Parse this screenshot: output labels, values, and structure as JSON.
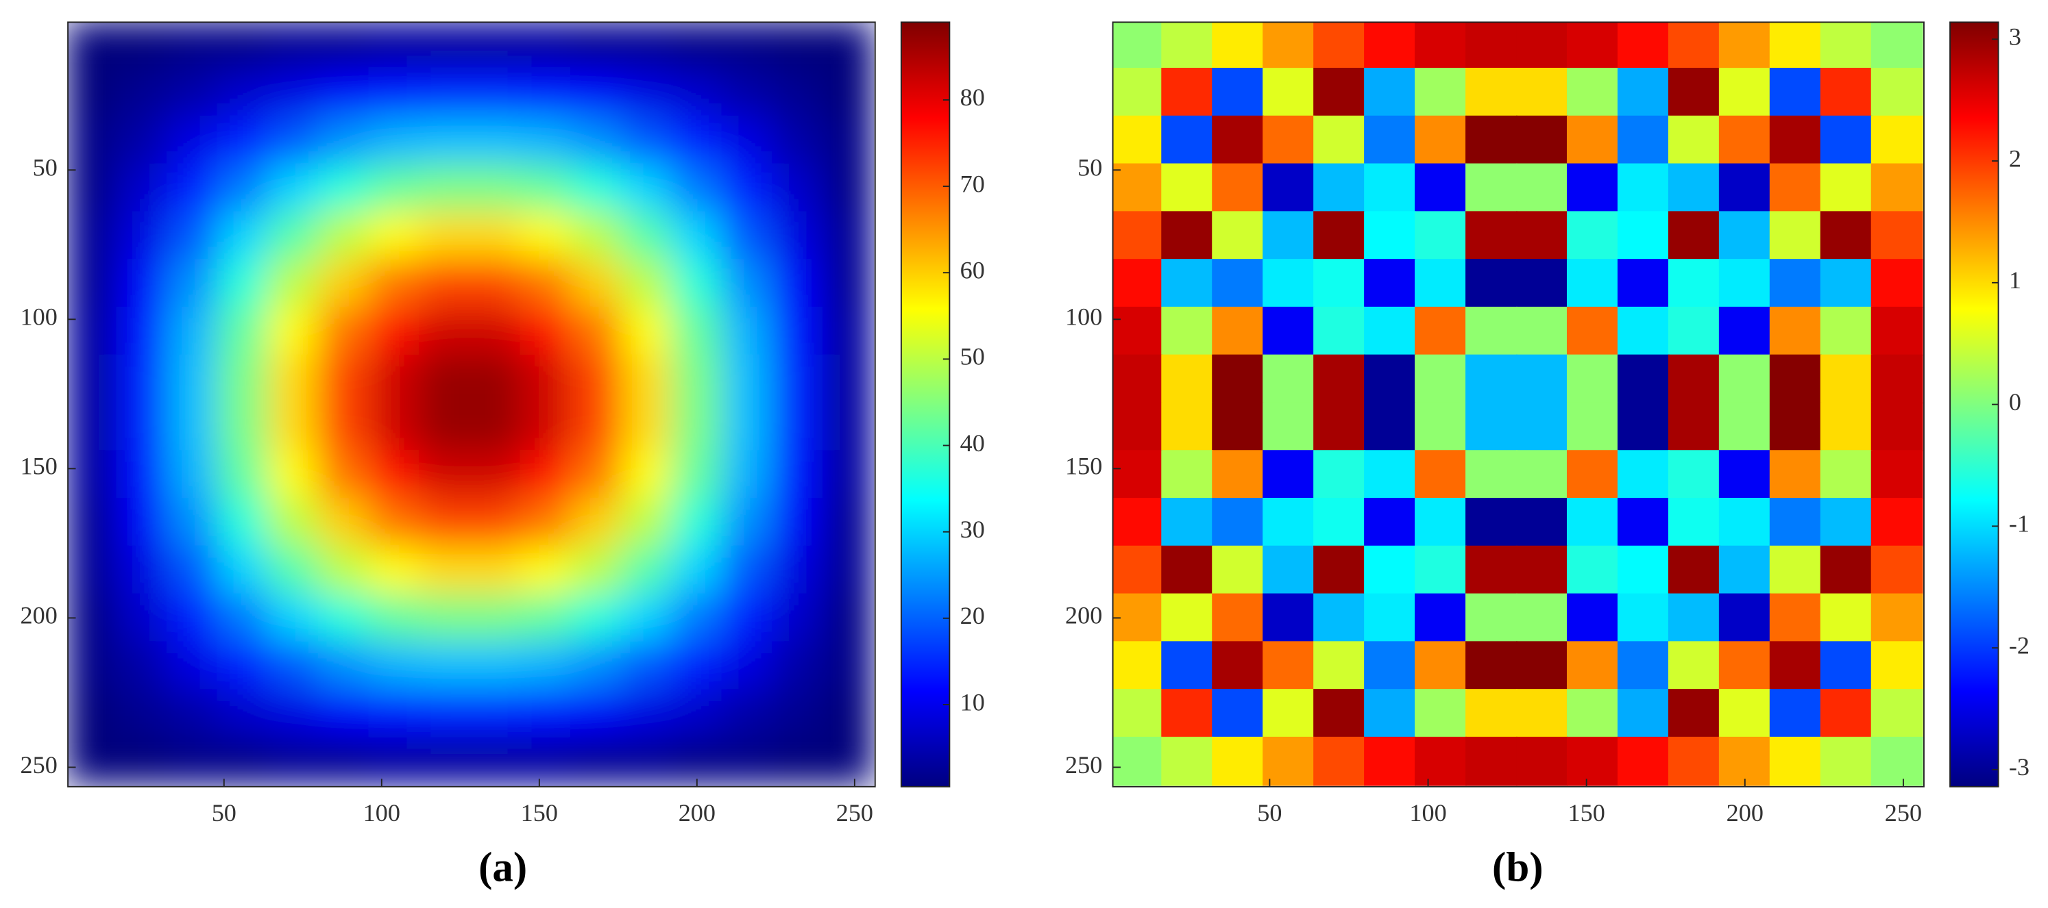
{
  "chart_data": [
    {
      "type": "heatmap",
      "label": "(a)",
      "colormap": "jet",
      "x": [
        8,
        24,
        40,
        56,
        72,
        88,
        104,
        120,
        136,
        152,
        168,
        184,
        200,
        216,
        232,
        248
      ],
      "y": [
        8,
        24,
        40,
        56,
        72,
        88,
        104,
        120,
        136,
        152,
        168,
        184,
        200,
        216,
        232,
        248
      ],
      "z": [
        [
          0,
          0,
          1,
          1,
          2,
          2,
          3,
          3,
          3,
          3,
          2,
          2,
          1,
          1,
          0,
          0
        ],
        [
          0,
          2,
          4,
          7,
          9,
          11,
          13,
          14,
          14,
          13,
          11,
          9,
          7,
          4,
          2,
          0
        ],
        [
          1,
          4,
          9,
          14,
          19,
          24,
          27,
          28,
          28,
          27,
          24,
          19,
          14,
          9,
          4,
          1
        ],
        [
          1,
          7,
          14,
          22,
          30,
          37,
          42,
          44,
          44,
          42,
          37,
          30,
          22,
          14,
          7,
          1
        ],
        [
          2,
          9,
          19,
          30,
          41,
          50,
          56,
          59,
          59,
          56,
          50,
          41,
          30,
          19,
          9,
          2
        ],
        [
          2,
          11,
          24,
          37,
          50,
          60,
          68,
          72,
          72,
          68,
          60,
          50,
          37,
          24,
          11,
          2
        ],
        [
          3,
          13,
          27,
          42,
          56,
          68,
          77,
          82,
          82,
          77,
          68,
          56,
          42,
          27,
          13,
          3
        ],
        [
          3,
          14,
          28,
          44,
          59,
          72,
          82,
          87,
          87,
          82,
          72,
          59,
          44,
          28,
          14,
          3
        ],
        [
          3,
          14,
          28,
          44,
          59,
          72,
          82,
          87,
          87,
          82,
          72,
          59,
          44,
          28,
          14,
          3
        ],
        [
          3,
          13,
          27,
          42,
          56,
          68,
          77,
          82,
          82,
          77,
          68,
          56,
          42,
          27,
          13,
          3
        ],
        [
          2,
          11,
          24,
          37,
          50,
          60,
          68,
          72,
          72,
          68,
          60,
          50,
          37,
          24,
          11,
          2
        ],
        [
          2,
          9,
          19,
          30,
          41,
          50,
          56,
          59,
          59,
          56,
          50,
          41,
          30,
          19,
          9,
          2
        ],
        [
          1,
          7,
          14,
          22,
          30,
          37,
          42,
          44,
          44,
          42,
          37,
          30,
          22,
          14,
          7,
          1
        ],
        [
          1,
          4,
          9,
          14,
          19,
          24,
          27,
          28,
          28,
          27,
          24,
          19,
          14,
          9,
          4,
          1
        ],
        [
          0,
          2,
          4,
          7,
          9,
          11,
          13,
          14,
          14,
          13,
          11,
          9,
          7,
          4,
          2,
          0
        ],
        [
          0,
          0,
          1,
          1,
          2,
          2,
          3,
          3,
          3,
          3,
          2,
          2,
          1,
          1,
          0,
          0
        ]
      ],
      "smooth": true,
      "xlim": [
        0.5,
        256.5
      ],
      "ylim": [
        0.5,
        256.5
      ],
      "xticks": [
        50,
        100,
        150,
        200,
        250
      ],
      "yticks": [
        50,
        100,
        150,
        200,
        250
      ],
      "colorbar": {
        "clim": [
          0.5,
          89
        ],
        "ticks": [
          10,
          20,
          30,
          40,
          50,
          60,
          70,
          80
        ]
      }
    },
    {
      "type": "heatmap",
      "label": "(b)",
      "colormap": "jet",
      "x": [
        8,
        24,
        40,
        56,
        72,
        88,
        104,
        120,
        136,
        152,
        168,
        184,
        200,
        216,
        232,
        248
      ],
      "y": [
        8,
        24,
        40,
        56,
        72,
        88,
        104,
        120,
        136,
        152,
        168,
        184,
        200,
        216,
        232,
        248
      ],
      "z": [
        [
          0.1,
          0.4,
          0.9,
          1.4,
          1.9,
          2.3,
          2.6,
          2.7,
          2.7,
          2.6,
          2.3,
          1.9,
          1.4,
          0.9,
          0.4,
          0.1
        ],
        [
          0.4,
          2.1,
          -1.9,
          0.6,
          3.0,
          -1.3,
          0.2,
          1.0,
          1.0,
          0.2,
          -1.3,
          3.0,
          0.6,
          -1.9,
          2.1,
          0.4
        ],
        [
          0.9,
          -1.9,
          2.9,
          1.7,
          0.5,
          -1.6,
          1.5,
          3.1,
          3.1,
          1.5,
          -1.6,
          0.5,
          1.7,
          2.9,
          -1.9,
          0.9
        ],
        [
          1.4,
          0.6,
          1.7,
          -2.7,
          -1.2,
          -0.9,
          -2.4,
          0.1,
          0.1,
          -2.4,
          -0.9,
          -1.2,
          -2.7,
          1.7,
          0.6,
          1.4
        ],
        [
          1.9,
          3.0,
          0.5,
          -1.2,
          3.0,
          -0.8,
          -0.6,
          2.9,
          2.9,
          -0.6,
          -0.8,
          3.0,
          -1.2,
          0.5,
          3.0,
          1.9
        ],
        [
          2.3,
          -1.2,
          -1.6,
          -0.9,
          -0.7,
          -2.4,
          -0.9,
          -3.0,
          -3.0,
          -0.9,
          -2.4,
          -0.7,
          -0.9,
          -1.6,
          -1.2,
          2.3
        ],
        [
          2.6,
          0.3,
          1.5,
          -2.4,
          -0.6,
          -0.9,
          1.7,
          0.1,
          0.1,
          1.7,
          -0.9,
          -0.6,
          -2.4,
          1.5,
          0.3,
          2.6
        ],
        [
          2.7,
          1.0,
          3.1,
          0.1,
          2.9,
          -3.0,
          0.1,
          -1.2,
          -1.2,
          0.1,
          -3.0,
          2.9,
          0.1,
          3.1,
          1.0,
          2.7
        ],
        [
          2.7,
          1.0,
          3.1,
          0.1,
          2.9,
          -3.0,
          0.1,
          -1.2,
          -1.2,
          0.1,
          -3.0,
          2.9,
          0.1,
          3.1,
          1.0,
          2.7
        ],
        [
          2.6,
          0.3,
          1.5,
          -2.4,
          -0.6,
          -0.9,
          1.7,
          0.1,
          0.1,
          1.7,
          -0.9,
          -0.6,
          -2.4,
          1.5,
          0.3,
          2.6
        ],
        [
          2.3,
          -1.2,
          -1.6,
          -0.9,
          -0.7,
          -2.4,
          -0.9,
          -3.0,
          -3.0,
          -0.9,
          -2.4,
          -0.7,
          -0.9,
          -1.6,
          -1.2,
          2.3
        ],
        [
          1.9,
          3.0,
          0.5,
          -1.2,
          3.0,
          -0.8,
          -0.6,
          2.9,
          2.9,
          -0.6,
          -0.8,
          3.0,
          -1.2,
          0.5,
          3.0,
          1.9
        ],
        [
          1.4,
          0.6,
          1.7,
          -2.7,
          -1.2,
          -0.9,
          -2.4,
          0.1,
          0.1,
          -2.4,
          -0.9,
          -1.2,
          -2.7,
          1.7,
          0.6,
          1.4
        ],
        [
          0.9,
          -1.9,
          2.9,
          1.7,
          0.5,
          -1.6,
          1.5,
          3.1,
          3.1,
          1.5,
          -1.6,
          0.5,
          1.7,
          2.9,
          -1.9,
          0.9
        ],
        [
          0.4,
          2.1,
          -1.9,
          0.6,
          3.0,
          -1.3,
          0.2,
          1.0,
          1.0,
          0.2,
          -1.3,
          3.0,
          0.6,
          -1.9,
          2.1,
          0.4
        ],
        [
          0.1,
          0.4,
          0.9,
          1.4,
          1.9,
          2.3,
          2.6,
          2.7,
          2.7,
          2.6,
          2.3,
          1.9,
          1.4,
          0.9,
          0.4,
          0.1
        ]
      ],
      "smooth": false,
      "xlim": [
        0.5,
        256.5
      ],
      "ylim": [
        0.5,
        256.5
      ],
      "xticks": [
        50,
        100,
        150,
        200,
        250
      ],
      "yticks": [
        50,
        100,
        150,
        200,
        250
      ],
      "colorbar": {
        "clim": [
          -3.14,
          3.14
        ],
        "ticks": [
          -3,
          -2,
          -1,
          0,
          1,
          2,
          3
        ]
      }
    }
  ]
}
